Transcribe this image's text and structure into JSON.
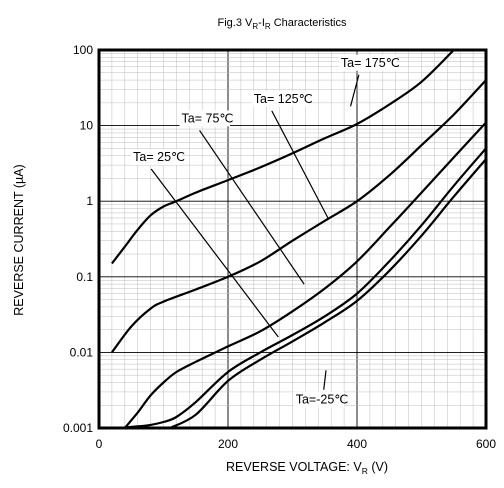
{
  "chart_data": {
    "type": "line",
    "title": {
      "main": "Fig.3 V",
      "sub1": "R",
      "mid": "-I",
      "sub2": "R",
      "tail": " Characteristics"
    },
    "xlabel": {
      "main": "REVERSE VOLTAGE: V",
      "sub": "R",
      "tail": " (V)"
    },
    "ylabel": "REVERSE CURRENT (µA)",
    "xlim": [
      0,
      600
    ],
    "ylim": [
      0.001,
      100
    ],
    "yscale": "log",
    "grid": true,
    "x_ticks": [
      {
        "value": 0,
        "label": "0"
      },
      {
        "value": 200,
        "label": "200"
      },
      {
        "value": 400,
        "label": "400"
      },
      {
        "value": 600,
        "label": "600"
      }
    ],
    "y_ticks": [
      {
        "value": 100,
        "label": "100"
      },
      {
        "value": 10,
        "label": "10"
      },
      {
        "value": 1,
        "label": "1"
      },
      {
        "value": 0.1,
        "label": "0.1"
      },
      {
        "value": 0.01,
        "label": "0.01"
      },
      {
        "value": 0.001,
        "label": "0.001"
      }
    ],
    "series": [
      {
        "name": "Ta= 175℃",
        "x": [
          20,
          40,
          60,
          80,
          100,
          120,
          150,
          200,
          250,
          300,
          350,
          400,
          450,
          500,
          550
        ],
        "y": [
          0.15,
          0.25,
          0.42,
          0.65,
          0.85,
          1.0,
          1.3,
          1.9,
          2.8,
          4.3,
          6.8,
          10.5,
          19,
          38,
          100
        ]
      },
      {
        "name": "Ta= 125℃",
        "x": [
          20,
          50,
          80,
          100,
          150,
          200,
          250,
          300,
          350,
          400,
          450,
          500,
          550,
          600
        ],
        "y": [
          0.01,
          0.022,
          0.038,
          0.047,
          0.068,
          0.1,
          0.16,
          0.3,
          0.55,
          1.0,
          2.2,
          5.5,
          14,
          40
        ]
      },
      {
        "name": "Ta= 75℃",
        "x": [
          40,
          60,
          80,
          100,
          120,
          150,
          200,
          250,
          300,
          350,
          400,
          450,
          500,
          550,
          600
        ],
        "y": [
          0.001,
          0.0016,
          0.0027,
          0.004,
          0.0055,
          0.0075,
          0.012,
          0.019,
          0.035,
          0.07,
          0.16,
          0.45,
          1.3,
          3.8,
          11
        ]
      },
      {
        "name": "Ta= 25℃",
        "x": [
          30,
          60,
          80,
          100,
          120,
          150,
          200,
          250,
          300,
          350,
          400,
          450,
          500,
          550,
          600
        ],
        "y": [
          0.001,
          0.00105,
          0.0011,
          0.0012,
          0.0014,
          0.0022,
          0.0055,
          0.01,
          0.017,
          0.03,
          0.06,
          0.16,
          0.48,
          1.6,
          5.0
        ]
      },
      {
        "name": "Ta=-25℃",
        "x": [
          110,
          150,
          200,
          250,
          300,
          350,
          400,
          450,
          500,
          550,
          600
        ],
        "y": [
          0.001,
          0.0015,
          0.0042,
          0.008,
          0.014,
          0.025,
          0.048,
          0.12,
          0.35,
          1.15,
          3.6
        ]
      }
    ],
    "annotations": [
      {
        "text": "Ta= 175℃",
        "x": 375,
        "y": 60,
        "arrow_to": [
          390,
          18
        ]
      },
      {
        "text": "Ta= 125℃",
        "x": 240,
        "y": 20,
        "arrow_to": [
          355,
          0.6
        ]
      },
      {
        "text": "Ta= 75℃",
        "x": 128,
        "y": 11,
        "arrow_to": [
          318,
          0.08
        ]
      },
      {
        "text": "Ta= 25℃",
        "x": 53,
        "y": 3.4,
        "arrow_to": [
          278,
          0.016
        ]
      },
      {
        "text": "Ta=-25℃",
        "x": 305,
        "y": 0.0021,
        "arrow_to": [
          352,
          0.0058
        ]
      }
    ]
  }
}
